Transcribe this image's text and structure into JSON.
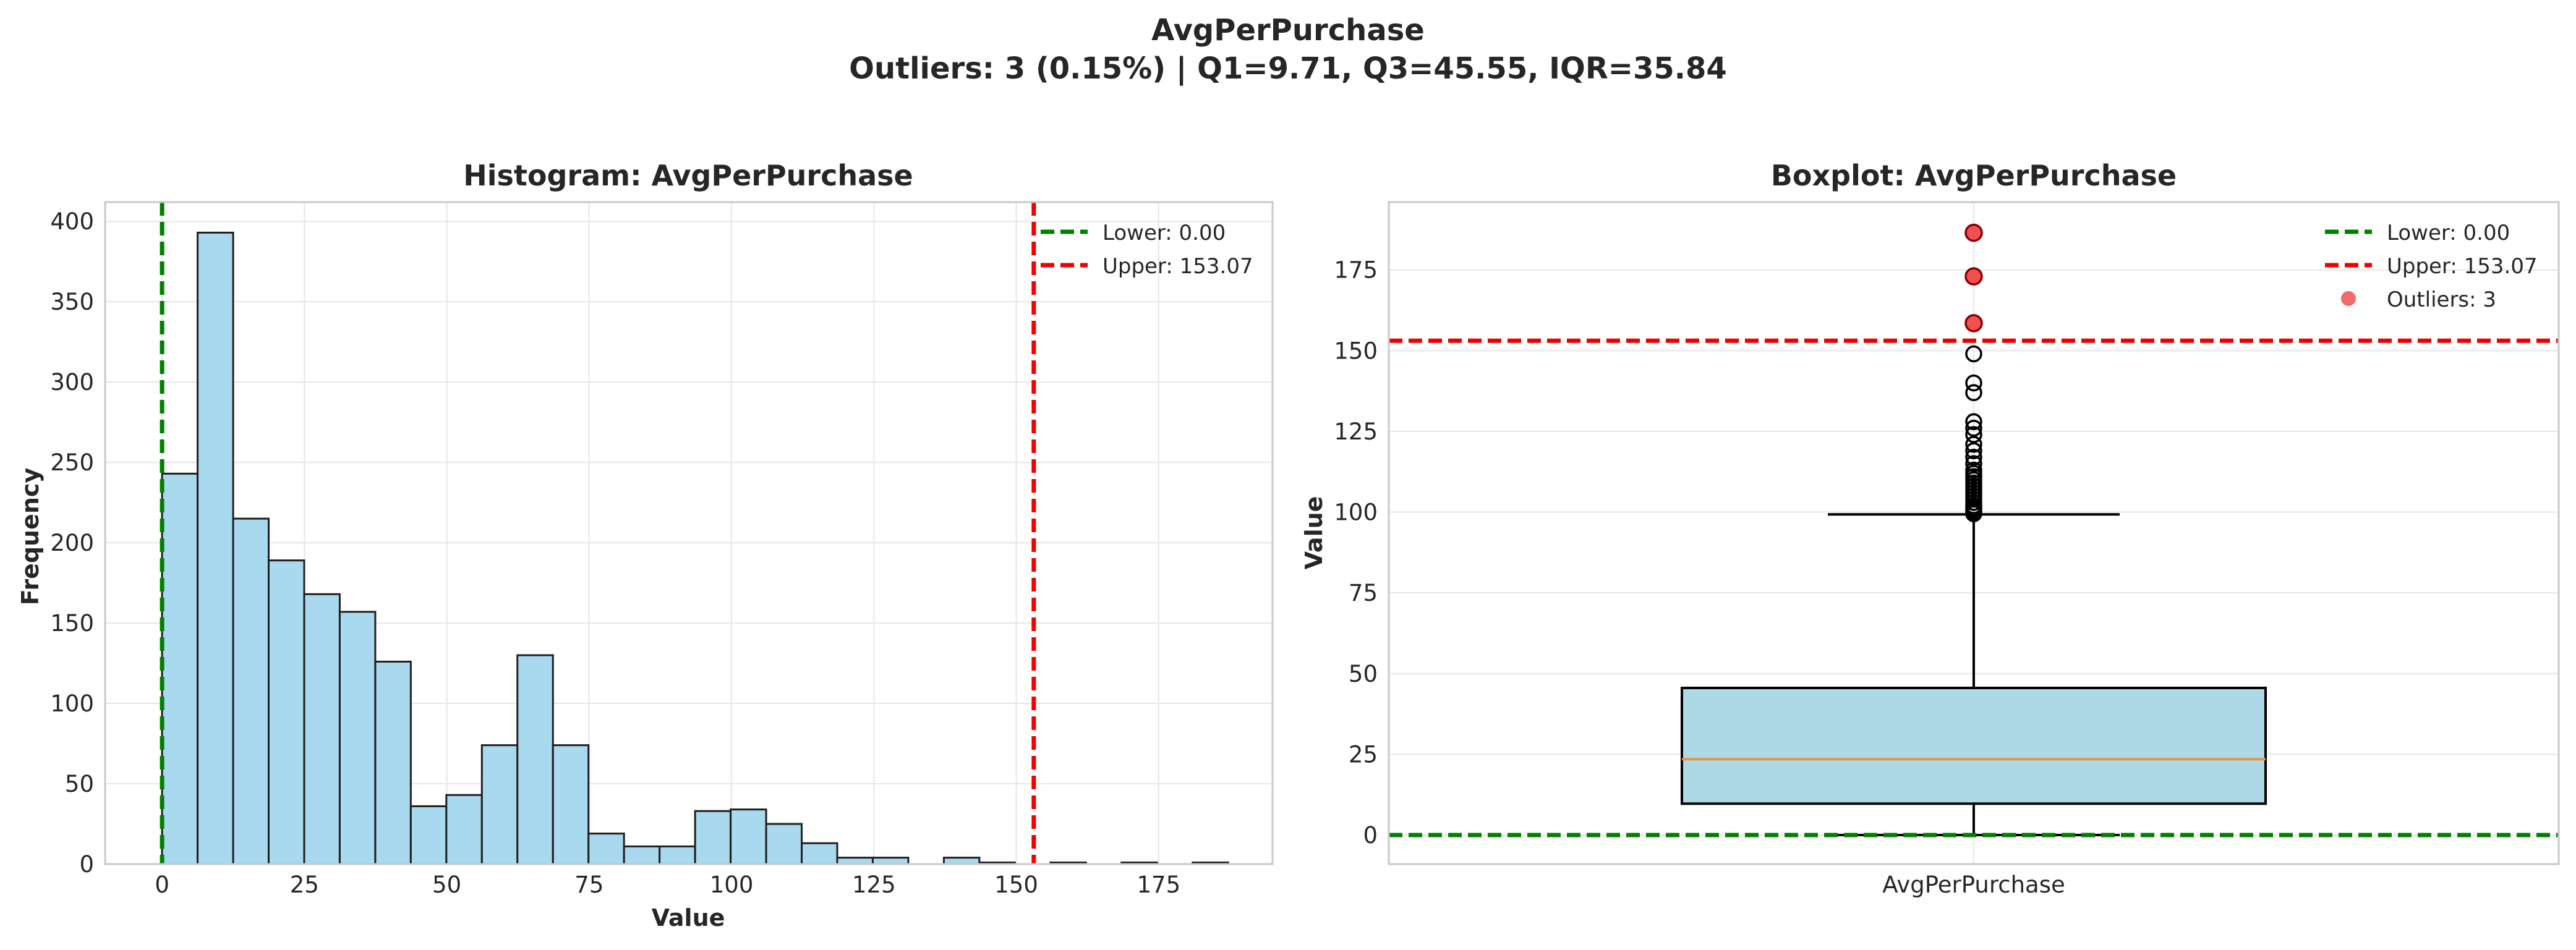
{
  "suptitle": {
    "line1": "AvgPerPurchase",
    "line2": "Outliers: 3 (0.15%) | Q1=9.71, Q3=45.55, IQR=35.84"
  },
  "colors": {
    "bar_fill": "#a9d9ee",
    "bar_edge": "#1f1f1f",
    "lower_line": "#008000",
    "upper_line": "#ee0000",
    "box_fill": "#add8e6",
    "median": "#e8943c",
    "outlier": "#f05050",
    "grid": "#e6e6e6",
    "frame": "#c8c8c8"
  },
  "chart_data": [
    {
      "type": "bar",
      "title": "Histogram: AvgPerPurchase",
      "xlabel": "Value",
      "ylabel": "Frequency",
      "xlim": [
        -10,
        195
      ],
      "ylim": [
        0,
        412
      ],
      "xticks": [
        0,
        25,
        50,
        75,
        100,
        125,
        150,
        175
      ],
      "yticks": [
        0,
        50,
        100,
        150,
        200,
        250,
        300,
        350,
        400
      ],
      "bin_start": 0,
      "bin_width": 6.24,
      "values": [
        243,
        393,
        215,
        189,
        168,
        157,
        126,
        36,
        43,
        74,
        130,
        74,
        19,
        11,
        11,
        33,
        34,
        25,
        13,
        4,
        4,
        0,
        4,
        1,
        0,
        1,
        0,
        1,
        0,
        1
      ],
      "reference_lines": [
        {
          "name": "Lower",
          "value": 0.0,
          "legend": "Lower: 0.00",
          "color": "#008000"
        },
        {
          "name": "Upper",
          "value": 153.07,
          "legend": "Upper: 153.07",
          "color": "#ee0000"
        }
      ],
      "legend_position": "upper right",
      "grid": true
    },
    {
      "type": "box",
      "title": "Boxplot: AvgPerPurchase",
      "ylabel": "Value",
      "category": "AvgPerPurchase",
      "ylim": [
        -9,
        196
      ],
      "yticks": [
        0,
        25,
        50,
        75,
        100,
        125,
        150,
        175
      ],
      "stats": {
        "whisker_low": 0.0,
        "q1": 9.71,
        "median": 23.5,
        "q3": 45.55,
        "whisker_high": 99.3
      },
      "fliers_above_whisker": [
        99.5,
        100,
        100.5,
        101,
        101.5,
        102,
        103,
        104,
        105,
        106,
        107,
        108,
        109,
        110,
        111,
        112,
        113,
        115,
        117,
        119,
        121,
        124,
        126,
        128,
        137,
        140,
        149
      ],
      "outliers": [
        158.5,
        173,
        186.5
      ],
      "reference_lines": [
        {
          "name": "Lower",
          "value": 0.0,
          "legend": "Lower: 0.00",
          "color": "#008000"
        },
        {
          "name": "Upper",
          "value": 153.07,
          "legend": "Upper: 153.07",
          "color": "#ee0000"
        }
      ],
      "outlier_legend": "Outliers: 3",
      "legend_position": "upper right",
      "grid": true
    }
  ]
}
